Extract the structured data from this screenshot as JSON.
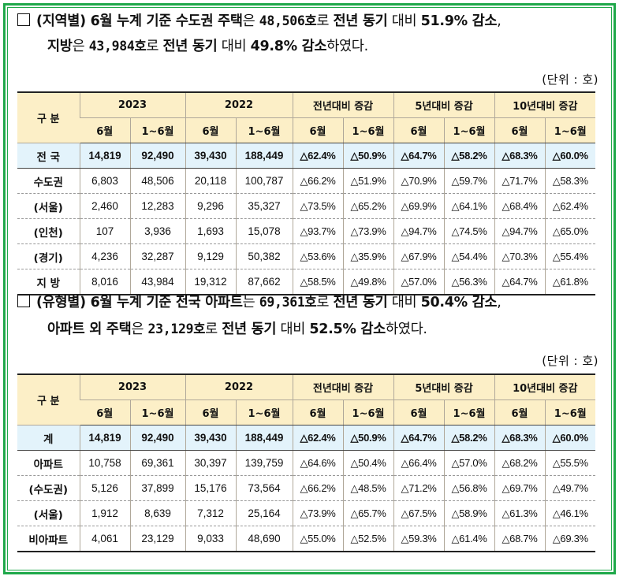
{
  "section1": {
    "line1": [
      {
        "t": "(지역별) 6월 누계 기준 ",
        "s": "b"
      },
      {
        "t": "수도권 주택",
        "s": "b"
      },
      {
        "t": "은 ",
        "s": ""
      },
      {
        "t": "48,506호",
        "s": "bn"
      },
      {
        "t": "로 ",
        "s": ""
      },
      {
        "t": "전년 동기",
        "s": "b"
      },
      {
        "t": " 대비 ",
        "s": ""
      },
      {
        "t": "51.9% 감소",
        "s": "b"
      },
      {
        "t": ",",
        "s": ""
      }
    ],
    "line2": [
      {
        "t": "지방",
        "s": "b"
      },
      {
        "t": "은 ",
        "s": ""
      },
      {
        "t": "43,984호",
        "s": "bn"
      },
      {
        "t": "로 ",
        "s": ""
      },
      {
        "t": "전년 동기",
        "s": "b"
      },
      {
        "t": " 대비 ",
        "s": ""
      },
      {
        "t": "49.8% 감소",
        "s": "b"
      },
      {
        "t": "하였다.",
        "s": ""
      }
    ],
    "unit": "(단위 : 호)"
  },
  "table1": {
    "header_group": "구 분",
    "groups": [
      "2023",
      "2022",
      "전년대비 증감",
      "5년대비 증감",
      "10년대비 증감"
    ],
    "subheaders": [
      "6월",
      "1~6월",
      "6월",
      "1~6월",
      "6월",
      "1~6월",
      "6월",
      "1~6월",
      "6월",
      "1~6월"
    ],
    "rows": [
      {
        "label": "전 국",
        "cells": [
          "14,819",
          "92,490",
          "39,430",
          "188,449",
          "△62.4%",
          "△50.9%",
          "△64.7%",
          "△58.2%",
          "△68.3%",
          "△60.0%"
        ]
      },
      {
        "label": "수도권",
        "cells": [
          "6,803",
          "48,506",
          "20,118",
          "100,787",
          "△66.2%",
          "△51.9%",
          "△70.9%",
          "△59.7%",
          "△71.7%",
          "△58.3%"
        ]
      },
      {
        "label": "(서울)",
        "cells": [
          "2,460",
          "12,283",
          "9,296",
          "35,327",
          "△73.5%",
          "△65.2%",
          "△69.9%",
          "△64.1%",
          "△68.4%",
          "△62.4%"
        ]
      },
      {
        "label": "(인천)",
        "cells": [
          "107",
          "3,936",
          "1,693",
          "15,078",
          "△93.7%",
          "△73.9%",
          "△94.7%",
          "△74.5%",
          "△94.7%",
          "△65.0%"
        ]
      },
      {
        "label": "(경기)",
        "cells": [
          "4,236",
          "32,287",
          "9,129",
          "50,382",
          "△53.6%",
          "△35.9%",
          "△67.9%",
          "△54.4%",
          "△70.3%",
          "△55.4%"
        ]
      },
      {
        "label": "지 방",
        "cells": [
          "8,016",
          "43,984",
          "19,312",
          "87,662",
          "△58.5%",
          "△49.8%",
          "△57.0%",
          "△56.3%",
          "△64.7%",
          "△61.8%"
        ]
      }
    ]
  },
  "section2": {
    "line1": [
      {
        "t": "(유형별) 6월 누계 기준 ",
        "s": "b"
      },
      {
        "t": "전국 아파트",
        "s": "b"
      },
      {
        "t": "는 ",
        "s": ""
      },
      {
        "t": "69,361호",
        "s": "bn"
      },
      {
        "t": "로 ",
        "s": ""
      },
      {
        "t": "전년 동기",
        "s": "b"
      },
      {
        "t": " 대비 ",
        "s": ""
      },
      {
        "t": "50.4% 감소",
        "s": "b"
      },
      {
        "t": ",",
        "s": ""
      }
    ],
    "line2": [
      {
        "t": "아파트 외 주택",
        "s": "b"
      },
      {
        "t": "은 ",
        "s": ""
      },
      {
        "t": "23,129호",
        "s": "bn"
      },
      {
        "t": "로 ",
        "s": ""
      },
      {
        "t": "전년 동기",
        "s": "b"
      },
      {
        "t": " 대비 ",
        "s": ""
      },
      {
        "t": "52.5% 감소",
        "s": "b"
      },
      {
        "t": "하였다.",
        "s": ""
      }
    ],
    "unit": "(단위 : 호)"
  },
  "table2": {
    "header_group": "구 분",
    "groups": [
      "2023",
      "2022",
      "전년대비 증감",
      "5년대비 증감",
      "10년대비 증감"
    ],
    "subheaders": [
      "6월",
      "1~6월",
      "6월",
      "1~6월",
      "6월",
      "1~6월",
      "6월",
      "1~6월",
      "6월",
      "1~6월"
    ],
    "rows": [
      {
        "label": "계",
        "cells": [
          "14,819",
          "92,490",
          "39,430",
          "188,449",
          "△62.4%",
          "△50.9%",
          "△64.7%",
          "△58.2%",
          "△68.3%",
          "△60.0%"
        ]
      },
      {
        "label": "아파트",
        "cells": [
          "10,758",
          "69,361",
          "30,397",
          "139,759",
          "△64.6%",
          "△50.4%",
          "△66.4%",
          "△57.0%",
          "△68.2%",
          "△55.5%"
        ]
      },
      {
        "label": "(수도권)",
        "cells": [
          "5,126",
          "37,899",
          "15,176",
          "73,564",
          "△66.2%",
          "△48.5%",
          "△71.2%",
          "△56.8%",
          "△69.7%",
          "△49.7%"
        ]
      },
      {
        "label": "(서울)",
        "cells": [
          "1,912",
          "8,639",
          "7,312",
          "25,164",
          "△73.9%",
          "△65.7%",
          "△67.5%",
          "△58.9%",
          "△61.3%",
          "△46.1%"
        ]
      },
      {
        "label": "비아파트",
        "cells": [
          "4,061",
          "23,129",
          "9,033",
          "48,690",
          "△55.0%",
          "△52.5%",
          "△59.3%",
          "△61.4%",
          "△68.7%",
          "△69.3%"
        ]
      }
    ]
  }
}
